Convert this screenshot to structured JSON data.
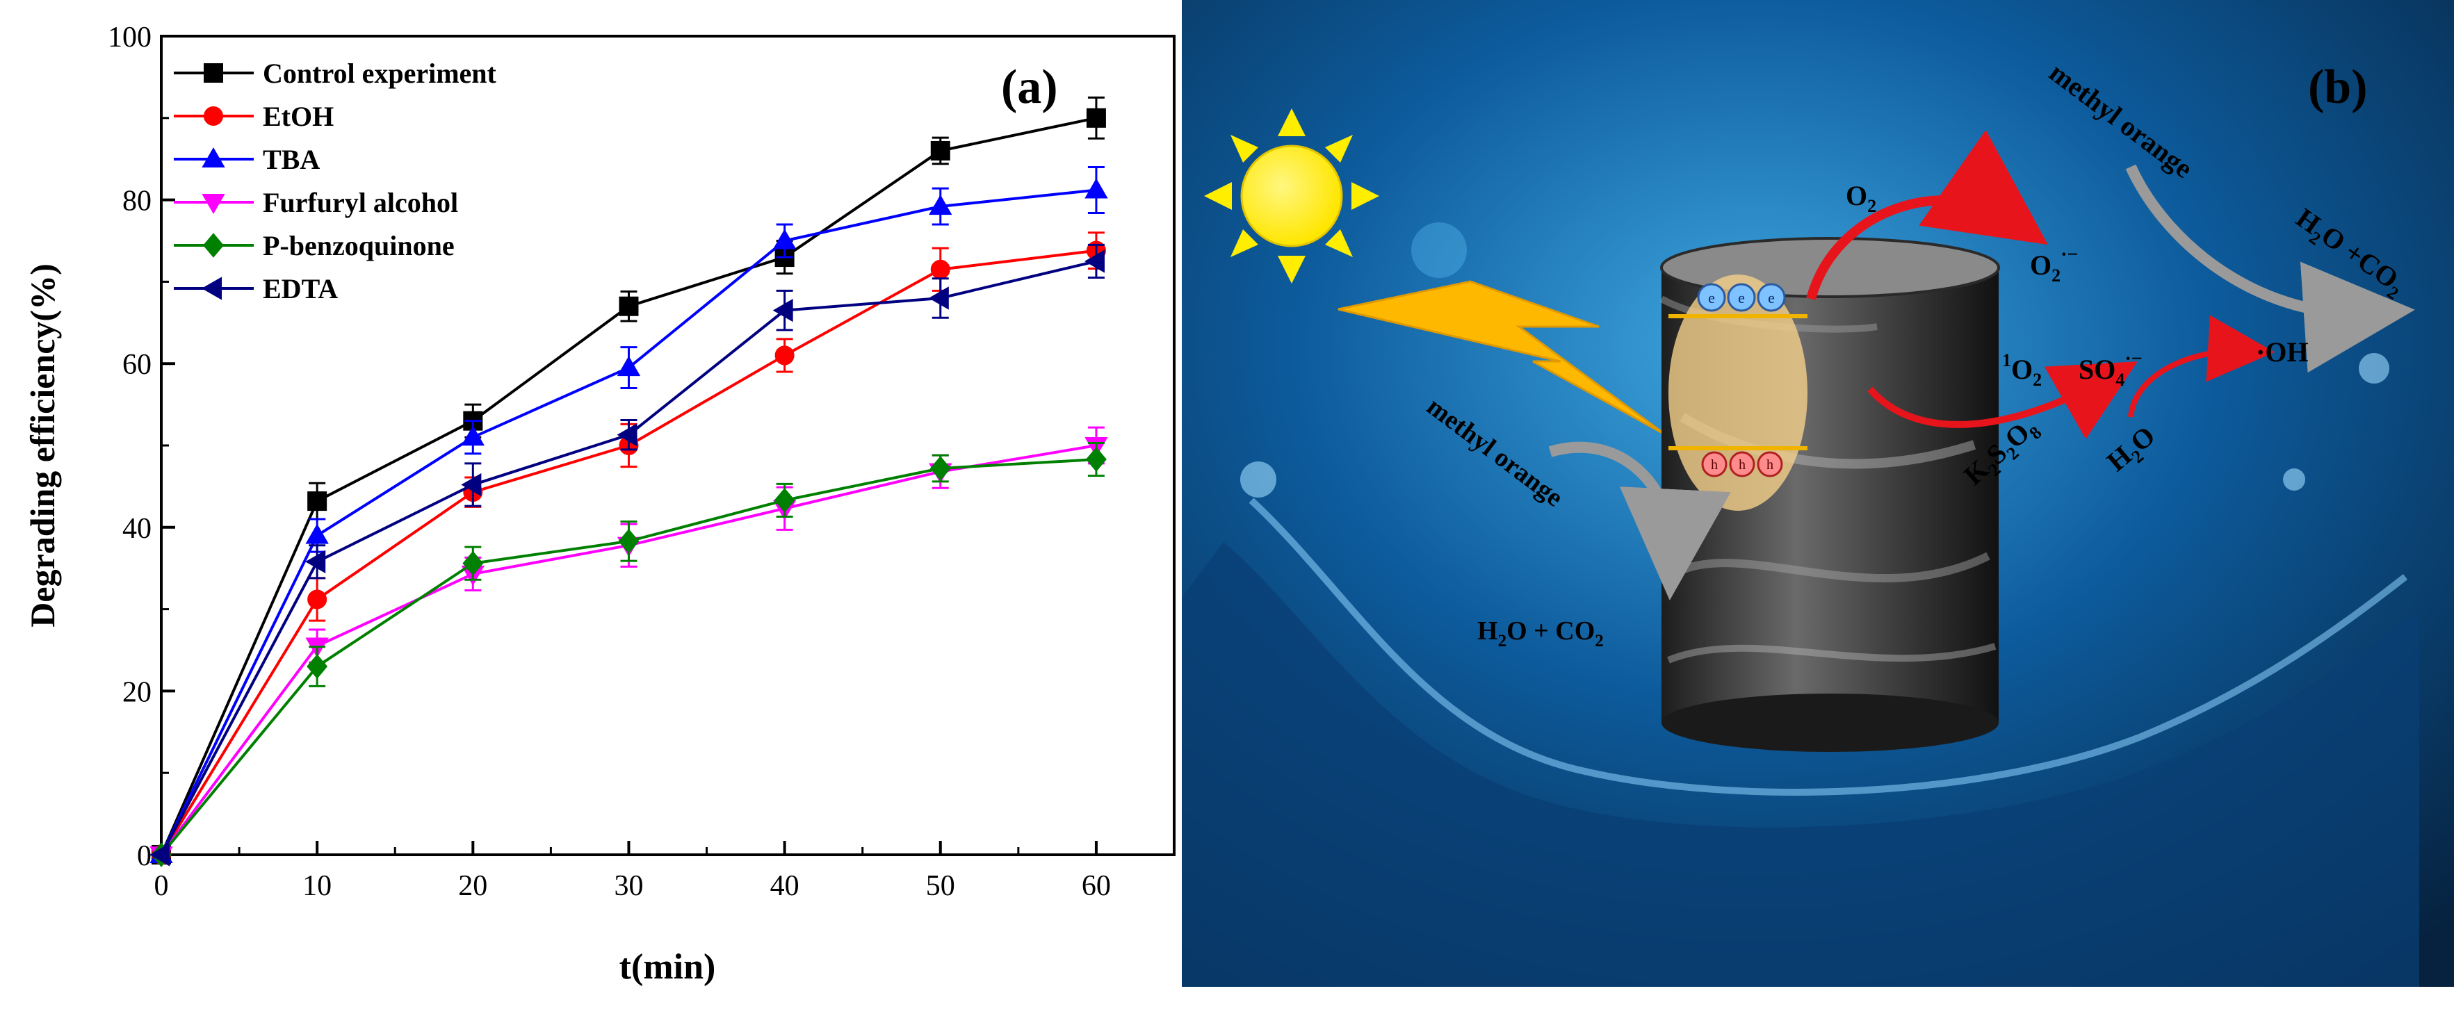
{
  "panel_a": {
    "label": "(a)"
  },
  "panel_b": {
    "label": "(b)",
    "annotations": {
      "methyl_orange_top": "methyl orange",
      "methyl_orange_left": "methyl orange",
      "h2o_co2_top": "H2O +CO2",
      "h2o_co2_left": "H2O + CO2",
      "o2": "O2",
      "o2_radical": "O2·−",
      "singlet_o2": "1O2",
      "so4_radical": "SO4·−",
      "oh_radical": "·OH",
      "h2o": "H2O",
      "k2s2o8": "K2S2O8",
      "electron": "e",
      "hole": "h"
    },
    "colors": {
      "water_dark": "#06223f",
      "water_mid": "#0d5b9c",
      "water_light": "#3fa7e0",
      "sun": "#ffee00",
      "bolt": "#ffb800",
      "arrow_red": "#e8141c",
      "arrow_gray": "#9a9a9a"
    }
  },
  "chart_data": {
    "type": "line",
    "title": "",
    "xlabel": "t(min)",
    "ylabel": "Degrading efficiency(%)",
    "xlim": [
      0,
      65
    ],
    "ylim": [
      0,
      100
    ],
    "xticks": [
      0,
      10,
      20,
      30,
      40,
      50,
      60
    ],
    "yticks": [
      0,
      20,
      40,
      60,
      80,
      100
    ],
    "grid": false,
    "legend_position": "top-left",
    "x": [
      0,
      10,
      20,
      30,
      40,
      50,
      60
    ],
    "series": [
      {
        "name": "Control experiment",
        "color": "#000000",
        "marker": "square",
        "values": [
          0,
          43.2,
          53.0,
          67.0,
          73.0,
          86.0,
          90.0
        ],
        "errors": [
          0,
          2.2,
          2.0,
          1.8,
          2.0,
          1.6,
          2.5
        ]
      },
      {
        "name": "EtOH",
        "color": "#ff0000",
        "marker": "circle",
        "values": [
          0,
          31.2,
          44.3,
          50.0,
          61.0,
          71.5,
          73.8
        ],
        "errors": [
          0,
          2.6,
          1.8,
          2.6,
          2.0,
          2.6,
          2.2
        ]
      },
      {
        "name": "TBA",
        "color": "#0000ff",
        "marker": "triangle-up",
        "values": [
          0,
          39.0,
          51.0,
          59.5,
          75.0,
          79.2,
          81.2
        ],
        "errors": [
          0,
          2.0,
          2.0,
          2.5,
          2.0,
          2.2,
          2.8
        ]
      },
      {
        "name": "Furfuryl alcohol",
        "color": "#ff00ff",
        "marker": "triangle-down",
        "values": [
          0,
          25.5,
          34.3,
          37.8,
          42.3,
          46.8,
          50.0
        ],
        "errors": [
          0,
          2.0,
          2.0,
          2.6,
          2.6,
          2.0,
          2.2
        ]
      },
      {
        "name": "P-benzoquinone",
        "color": "#008000",
        "marker": "diamond",
        "values": [
          0,
          23.0,
          35.6,
          38.3,
          43.3,
          47.2,
          48.3
        ],
        "errors": [
          0,
          2.4,
          2.0,
          2.4,
          2.0,
          1.6,
          2.0
        ]
      },
      {
        "name": "EDTA",
        "color": "#000080",
        "marker": "triangle-left",
        "values": [
          0,
          35.8,
          45.2,
          51.3,
          66.5,
          68.0,
          72.5
        ],
        "errors": [
          0,
          2.0,
          2.6,
          1.8,
          2.4,
          2.4,
          2.0
        ]
      }
    ]
  }
}
